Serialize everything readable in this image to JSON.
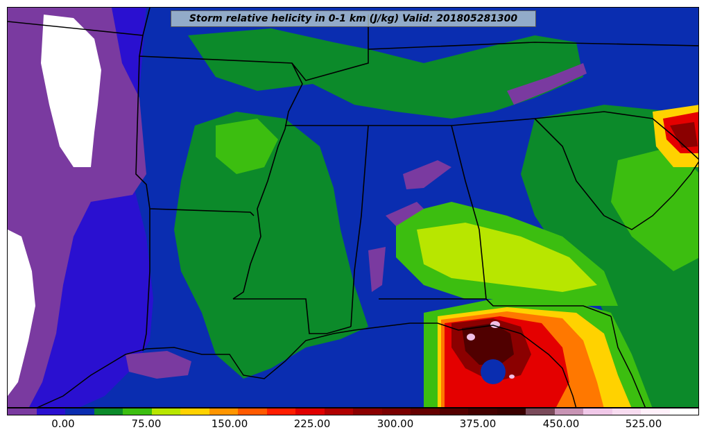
{
  "map": {
    "title": "Storm relative helicity in 0-1 km (J/kg) Valid: 201805281300",
    "field_colors": {
      "white": "#ffffff",
      "purple": "#7a3aa0",
      "indigo": "#2a10d0",
      "blue": "#0a2db0",
      "dark_green": "#0c8a2a",
      "green": "#3cbe10",
      "lime": "#b8e600",
      "yellow": "#ffd200",
      "orange": "#ff7800",
      "red": "#e40000",
      "dark_red": "#8b0000",
      "maroon": "#500000",
      "pink": "#f0c0e6"
    },
    "border_color": "#000000"
  },
  "colorbar": {
    "colors": [
      "#7a3aa0",
      "#2a10d0",
      "#0a2db0",
      "#0c8a2a",
      "#3cbe10",
      "#b8e600",
      "#ffd200",
      "#ff9600",
      "#ff5a00",
      "#ff1e00",
      "#e00000",
      "#b00000",
      "#8b0000",
      "#7a0000",
      "#660000",
      "#550000",
      "#440000",
      "#3a0000",
      "#7a4a5a",
      "#c894b4",
      "#f0c8e8",
      "#f8dcf0",
      "#fff0fa",
      "#ffffff"
    ],
    "tick_labels": [
      "0.00",
      "75.00",
      "150.00",
      "225.00",
      "300.00",
      "375.00",
      "450.00",
      "525.00"
    ]
  }
}
